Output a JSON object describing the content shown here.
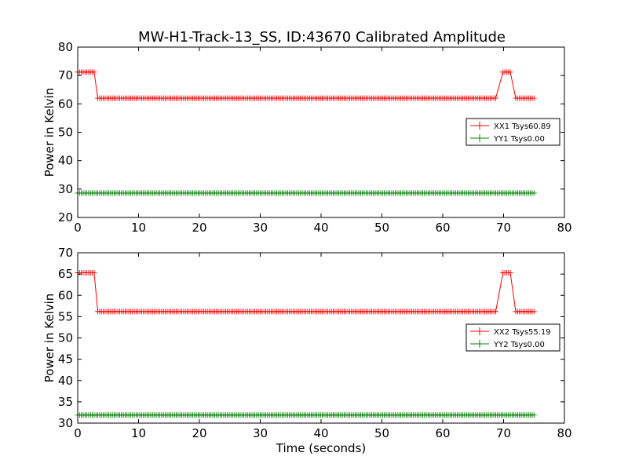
{
  "figure_title": "MW-H1-Track-13_SS, ID:43670 Calibrated Amplitude",
  "chart_data": [
    {
      "type": "line",
      "title": "MW-H1-Track-13_SS, ID:43670 Calibrated Amplitude",
      "xlabel": "",
      "ylabel": "Power in Kelvin",
      "xlim": [
        0,
        80
      ],
      "ylim": [
        20,
        80
      ],
      "xticks": [
        "0",
        "10",
        "20",
        "30",
        "40",
        "50",
        "60",
        "70",
        "80"
      ],
      "yticks": [
        "20",
        "30",
        "40",
        "50",
        "60",
        "70",
        "80"
      ],
      "legend_position": "center-right",
      "grid": false,
      "series": [
        {
          "name": "XX1 Tsys60.89",
          "color": "#ff0000",
          "marker": "plus",
          "x_start": 0.0,
          "x_end": 75.0,
          "x_step": 0.3,
          "segments": [
            {
              "x0": 0.0,
              "x1": 2.8,
              "value": 71.2
            },
            {
              "x0": 3.1,
              "x1": 68.8,
              "value": 62.0
            },
            {
              "x0": 69.1,
              "x1": 69.1,
              "value": 65.5
            },
            {
              "x0": 69.4,
              "x1": 69.4,
              "value": 70.0
            },
            {
              "x0": 69.7,
              "x1": 71.2,
              "value": 71.2
            },
            {
              "x0": 71.5,
              "x1": 71.5,
              "value": 68.5
            },
            {
              "x0": 71.8,
              "x1": 75.0,
              "value": 62.0
            }
          ]
        },
        {
          "name": "YY1 Tsys0.00",
          "color": "#008000",
          "marker": "plus",
          "x_start": 0.0,
          "x_end": 75.0,
          "x_step": 0.3,
          "segments": [
            {
              "x0": 0.0,
              "x1": 75.0,
              "value": 28.6
            }
          ]
        }
      ]
    },
    {
      "type": "line",
      "title": "",
      "xlabel": "Time (seconds)",
      "ylabel": "Power in Kelvin",
      "xlim": [
        0,
        80
      ],
      "ylim": [
        30,
        70
      ],
      "xticks": [
        "0",
        "10",
        "20",
        "30",
        "40",
        "50",
        "60",
        "70",
        "80"
      ],
      "yticks": [
        "30",
        "35",
        "40",
        "45",
        "50",
        "55",
        "60",
        "65",
        "70"
      ],
      "legend_position": "center-right",
      "grid": false,
      "series": [
        {
          "name": "XX2 Tsys55.19",
          "color": "#ff0000",
          "marker": "plus",
          "x_start": 0.0,
          "x_end": 75.0,
          "x_step": 0.3,
          "segments": [
            {
              "x0": 0.0,
              "x1": 2.8,
              "value": 65.3
            },
            {
              "x0": 3.1,
              "x1": 68.8,
              "value": 56.2
            },
            {
              "x0": 69.1,
              "x1": 69.1,
              "value": 59.2
            },
            {
              "x0": 69.4,
              "x1": 69.4,
              "value": 64.0
            },
            {
              "x0": 69.7,
              "x1": 71.2,
              "value": 65.3
            },
            {
              "x0": 71.5,
              "x1": 71.5,
              "value": 62.8
            },
            {
              "x0": 71.8,
              "x1": 75.0,
              "value": 56.2
            }
          ]
        },
        {
          "name": "YY2 Tsys0.00",
          "color": "#008000",
          "marker": "plus",
          "x_start": 0.0,
          "x_end": 75.0,
          "x_step": 0.3,
          "segments": [
            {
              "x0": 0.0,
              "x1": 75.0,
              "value": 31.9
            }
          ]
        }
      ]
    }
  ]
}
